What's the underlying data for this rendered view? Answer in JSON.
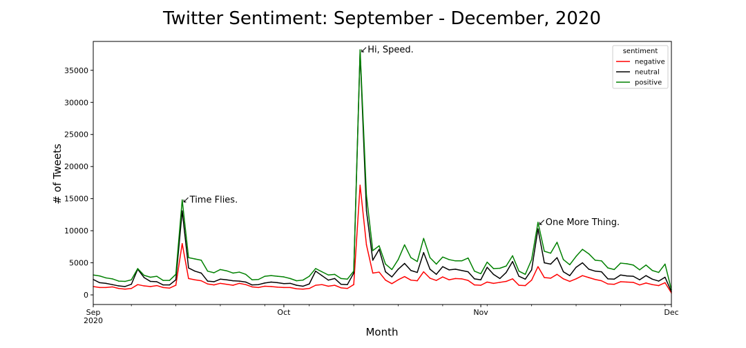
{
  "chart_data": {
    "type": "line",
    "title": "Twitter Sentiment: September - December, 2020",
    "xlabel": "Month",
    "ylabel": "# of Tweets",
    "ylim": [
      -1500,
      39500
    ],
    "y_ticks": [
      0,
      5000,
      10000,
      15000,
      20000,
      25000,
      30000,
      35000
    ],
    "x_range": [
      "2020-09-01",
      "2020-12-01"
    ],
    "x_tick_labels": [
      {
        "date": "2020-09-01",
        "label": "Sep",
        "sub": "2020"
      },
      {
        "date": "2020-10-01",
        "label": "Oct",
        "sub": ""
      },
      {
        "date": "2020-11-01",
        "label": "Nov",
        "sub": ""
      },
      {
        "date": "2020-12-01",
        "label": "Dec",
        "sub": ""
      }
    ],
    "grid": false,
    "legend": {
      "title": "sentiment",
      "position": "top-right",
      "entries": [
        "negative",
        "neutral",
        "positive"
      ]
    },
    "x": [
      "2020-09-01",
      "2020-09-02",
      "2020-09-03",
      "2020-09-04",
      "2020-09-05",
      "2020-09-06",
      "2020-09-07",
      "2020-09-08",
      "2020-09-09",
      "2020-09-10",
      "2020-09-11",
      "2020-09-12",
      "2020-09-13",
      "2020-09-14",
      "2020-09-15",
      "2020-09-16",
      "2020-09-17",
      "2020-09-18",
      "2020-09-19",
      "2020-09-20",
      "2020-09-21",
      "2020-09-22",
      "2020-09-23",
      "2020-09-24",
      "2020-09-25",
      "2020-09-26",
      "2020-09-27",
      "2020-09-28",
      "2020-09-29",
      "2020-09-30",
      "2020-10-01",
      "2020-10-02",
      "2020-10-03",
      "2020-10-04",
      "2020-10-05",
      "2020-10-06",
      "2020-10-07",
      "2020-10-08",
      "2020-10-09",
      "2020-10-10",
      "2020-10-11",
      "2020-10-12",
      "2020-10-13",
      "2020-10-14",
      "2020-10-15",
      "2020-10-16",
      "2020-10-17",
      "2020-10-18",
      "2020-10-19",
      "2020-10-20",
      "2020-10-21",
      "2020-10-22",
      "2020-10-23",
      "2020-10-24",
      "2020-10-25",
      "2020-10-26",
      "2020-10-27",
      "2020-10-28",
      "2020-10-29",
      "2020-10-30",
      "2020-10-31",
      "2020-11-01",
      "2020-11-02",
      "2020-11-03",
      "2020-11-04",
      "2020-11-05",
      "2020-11-06",
      "2020-11-07",
      "2020-11-08",
      "2020-11-09",
      "2020-11-10",
      "2020-11-11",
      "2020-11-12",
      "2020-11-13",
      "2020-11-14",
      "2020-11-15",
      "2020-11-16",
      "2020-11-17",
      "2020-11-18",
      "2020-11-19",
      "2020-11-20",
      "2020-11-21",
      "2020-11-22",
      "2020-11-23",
      "2020-11-24",
      "2020-11-25",
      "2020-11-26",
      "2020-11-27",
      "2020-11-28",
      "2020-11-29",
      "2020-11-30",
      "2020-12-01"
    ],
    "series": [
      {
        "name": "negative",
        "color": "#ff0000",
        "values": [
          1300,
          1150,
          1150,
          1250,
          1000,
          900,
          1000,
          1600,
          1400,
          1300,
          1450,
          1150,
          1050,
          1500,
          8000,
          2550,
          2350,
          2200,
          1700,
          1550,
          1800,
          1650,
          1500,
          1800,
          1600,
          1250,
          1150,
          1350,
          1300,
          1200,
          1150,
          1150,
          950,
          900,
          1000,
          1500,
          1600,
          1350,
          1500,
          1100,
          1000,
          1600,
          17100,
          7800,
          3400,
          3550,
          2300,
          1750,
          2350,
          2850,
          2300,
          2200,
          3600,
          2600,
          2250,
          2800,
          2350,
          2550,
          2500,
          2250,
          1550,
          1500,
          2000,
          1800,
          1950,
          2100,
          2500,
          1500,
          1450,
          2300,
          4400,
          2700,
          2600,
          3200,
          2500,
          2100,
          2500,
          3000,
          2700,
          2400,
          2200,
          1700,
          1650,
          2050,
          2000,
          1950,
          1550,
          1850,
          1600,
          1450,
          1900,
          300
        ]
      },
      {
        "name": "neutral",
        "color": "#000000",
        "values": [
          2400,
          1900,
          1800,
          1600,
          1400,
          1300,
          1650,
          4000,
          2700,
          2100,
          2050,
          1550,
          1550,
          2350,
          13100,
          4200,
          3700,
          3400,
          2150,
          2050,
          2450,
          2350,
          2200,
          2150,
          2000,
          1550,
          1600,
          1850,
          2000,
          1900,
          1750,
          1800,
          1500,
          1350,
          1700,
          3700,
          3000,
          2300,
          2550,
          1650,
          1600,
          3400,
          37900,
          13100,
          5400,
          7100,
          3600,
          2800,
          4000,
          4900,
          3800,
          3500,
          6600,
          4000,
          3200,
          4400,
          3900,
          4000,
          3800,
          3600,
          2500,
          2350,
          4300,
          3200,
          2550,
          3500,
          5200,
          2900,
          2450,
          3900,
          10300,
          5000,
          4800,
          5800,
          3600,
          3000,
          4300,
          5000,
          4000,
          3700,
          3600,
          2500,
          2450,
          3100,
          2950,
          2900,
          2350,
          3000,
          2450,
          2150,
          2750,
          500
        ]
      },
      {
        "name": "positive",
        "color": "#008000",
        "values": [
          3100,
          2950,
          2650,
          2500,
          2150,
          2100,
          2350,
          4100,
          3050,
          2750,
          2900,
          2250,
          2250,
          3200,
          14800,
          5800,
          5600,
          5400,
          3700,
          3450,
          3950,
          3750,
          3400,
          3550,
          3200,
          2350,
          2400,
          2900,
          3000,
          2900,
          2800,
          2550,
          2200,
          2300,
          2900,
          4100,
          3600,
          3100,
          3200,
          2550,
          2450,
          3700,
          38200,
          15500,
          6900,
          7650,
          4800,
          3950,
          5500,
          7800,
          5800,
          5200,
          8800,
          5800,
          4800,
          5900,
          5500,
          5300,
          5300,
          5750,
          3700,
          3300,
          5100,
          4100,
          4150,
          4500,
          6100,
          3700,
          3200,
          5500,
          11300,
          6800,
          6500,
          8200,
          5500,
          4700,
          6000,
          7100,
          6400,
          5400,
          5300,
          4200,
          3950,
          4950,
          4850,
          4650,
          3900,
          4650,
          3800,
          3500,
          4800,
          800
        ]
      }
    ],
    "annotations": [
      {
        "text": "↙Time Flies.",
        "x": "2020-09-15",
        "y": 14800
      },
      {
        "text": "↙Hi, Speed.",
        "x": "2020-10-13",
        "y": 38200
      },
      {
        "text": "↙One More Thing.",
        "x": "2020-11-10",
        "y": 11300
      }
    ]
  }
}
